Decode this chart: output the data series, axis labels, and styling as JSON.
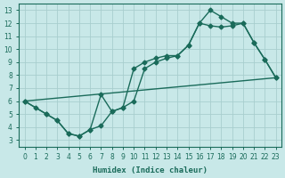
{
  "xlabel": "Humidex (Indice chaleur)",
  "ylabel": "",
  "background_color": "#c8e8e8",
  "line_color": "#1a6b5a",
  "grid_color": "#a8cece",
  "xlim": [
    -0.5,
    23.5
  ],
  "ylim": [
    2.5,
    13.5
  ],
  "xticks": [
    0,
    1,
    2,
    3,
    4,
    5,
    6,
    7,
    8,
    9,
    10,
    11,
    12,
    13,
    14,
    15,
    16,
    17,
    18,
    19,
    20,
    21,
    22,
    23
  ],
  "yticks": [
    3,
    4,
    5,
    6,
    7,
    8,
    9,
    10,
    11,
    12,
    13
  ],
  "curve1_x": [
    0,
    1,
    2,
    3,
    4,
    5,
    6,
    7,
    8,
    9,
    10,
    11,
    12,
    13,
    14,
    15,
    16,
    17,
    18,
    19,
    20,
    21,
    22,
    23
  ],
  "curve1_y": [
    6.0,
    5.5,
    5.0,
    4.5,
    3.5,
    3.3,
    3.8,
    6.5,
    5.2,
    5.5,
    8.5,
    9.0,
    9.3,
    9.5,
    9.5,
    10.3,
    12.0,
    13.0,
    12.5,
    12.0,
    12.0,
    10.5,
    9.2,
    7.8
  ],
  "curve2_x": [
    0,
    2,
    3,
    4,
    5,
    6,
    7,
    8,
    9,
    10,
    11,
    12,
    13,
    14,
    15,
    16,
    17,
    18,
    19,
    20,
    21,
    22,
    23
  ],
  "curve2_y": [
    6.0,
    5.0,
    4.5,
    3.5,
    3.3,
    3.8,
    4.1,
    5.2,
    5.5,
    6.0,
    8.5,
    9.0,
    9.3,
    9.5,
    10.3,
    12.0,
    11.8,
    11.7,
    11.8,
    12.0,
    10.5,
    9.2,
    7.8
  ],
  "curve3_x": [
    0,
    23
  ],
  "curve3_y": [
    6.0,
    7.8
  ],
  "marker": "D",
  "markersize": 2.5,
  "linewidth": 1.0
}
